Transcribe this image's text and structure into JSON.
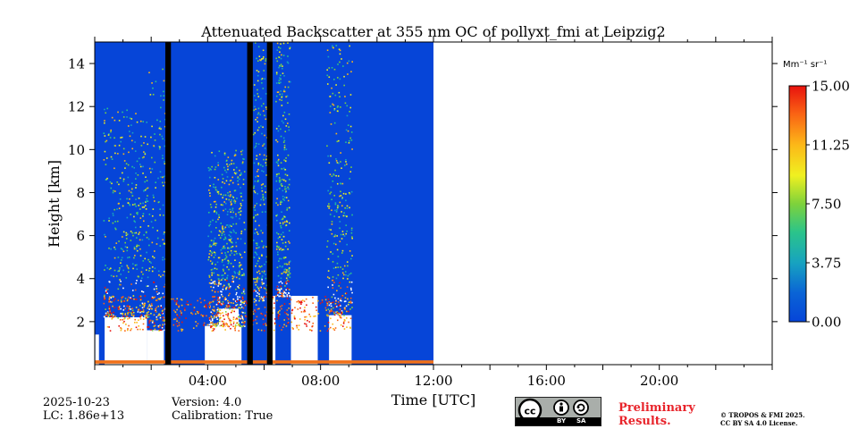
{
  "chart_data": {
    "type": "heatmap",
    "title": "Attenuated Backscatter at 355 nm OC of pollyxt_fmi at Leipzig2",
    "xlabel": "Time [UTC]",
    "ylabel": "Height [km]",
    "xlim_hours": [
      0,
      24
    ],
    "ylim_km": [
      0,
      15
    ],
    "x_ticks": [
      {
        "h": 4,
        "label": "04:00"
      },
      {
        "h": 8,
        "label": "08:00"
      },
      {
        "h": 12,
        "label": "12:00"
      },
      {
        "h": 16,
        "label": "16:00"
      },
      {
        "h": 20,
        "label": "20:00"
      }
    ],
    "y_ticks": [
      {
        "v": 2,
        "label": "2"
      },
      {
        "v": 4,
        "label": "4"
      },
      {
        "v": 6,
        "label": "6"
      },
      {
        "v": 8,
        "label": "8"
      },
      {
        "v": 10,
        "label": "10"
      },
      {
        "v": 12,
        "label": "12"
      },
      {
        "v": 14,
        "label": "14"
      }
    ],
    "colorbar": {
      "unit": "Mm⁻¹ sr⁻¹",
      "min": 0,
      "max": 15,
      "ticks": [
        {
          "v": 0,
          "label": "0.00"
        },
        {
          "v": 3.75,
          "label": "3.75"
        },
        {
          "v": 7.5,
          "label": "7.50"
        },
        {
          "v": 11.25,
          "label": "11.25"
        },
        {
          "v": 15,
          "label": "15.00"
        }
      ]
    },
    "data_coverage_hours": [
      0,
      12
    ],
    "missing_data_gaps_hours": [
      [
        2.5,
        2.7
      ],
      [
        5.4,
        5.6
      ],
      [
        6.1,
        6.3
      ]
    ],
    "colors": {
      "background_blue": "#0645d8",
      "missing": "#000000",
      "no_signal": "#ffffff",
      "ground_layer": "#f07018"
    }
  },
  "footer": {
    "date": "2025-10-23",
    "lc": "LC: 1.86e+13",
    "version": "Version: 4.0",
    "calibration": "Calibration: True",
    "license_by": "BY",
    "license_sa": "SA",
    "preliminary_line1": "Preliminary",
    "preliminary_line2": "Results.",
    "copyright_line1": "© TROPOS & FMI 2025.",
    "copyright_line2": "CC BY SA 4.0 License."
  }
}
